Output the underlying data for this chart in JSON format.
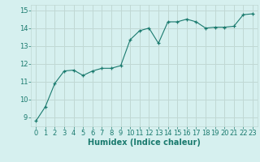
{
  "x": [
    0,
    1,
    2,
    3,
    4,
    5,
    6,
    7,
    8,
    9,
    10,
    11,
    12,
    13,
    14,
    15,
    16,
    17,
    18,
    19,
    20,
    21,
    22,
    23
  ],
  "y": [
    8.8,
    9.6,
    10.9,
    11.6,
    11.65,
    11.35,
    11.6,
    11.75,
    11.75,
    11.9,
    13.35,
    13.85,
    14.0,
    13.15,
    14.35,
    14.35,
    14.5,
    14.35,
    14.0,
    14.05,
    14.05,
    14.1,
    14.75,
    14.8
  ],
  "line_color": "#1a7a6e",
  "marker": "+",
  "marker_color": "#1a7a6e",
  "bg_color": "#d6f0ef",
  "grid_color": "#c0d8d4",
  "xlabel": "Humidex (Indice chaleur)",
  "xlim": [
    -0.5,
    23.5
  ],
  "ylim": [
    8.5,
    15.3
  ],
  "yticks": [
    9,
    10,
    11,
    12,
    13,
    14,
    15
  ],
  "xticks": [
    0,
    1,
    2,
    3,
    4,
    5,
    6,
    7,
    8,
    9,
    10,
    11,
    12,
    13,
    14,
    15,
    16,
    17,
    18,
    19,
    20,
    21,
    22,
    23
  ],
  "label_color": "#1a7a6e",
  "tick_color": "#1a7a6e",
  "font_size_axis": 6,
  "font_size_label": 7
}
